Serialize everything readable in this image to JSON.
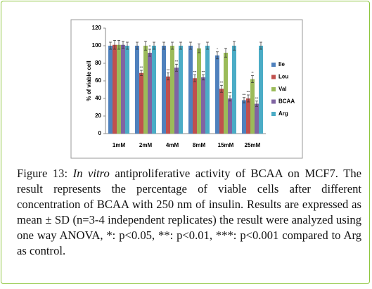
{
  "chart_data": {
    "type": "bar",
    "y_label": "% of viable cell",
    "categories": [
      "1mM",
      "2mM",
      "4mM",
      "8mM",
      "15mM",
      "25mM"
    ],
    "series": [
      {
        "name": "Ile",
        "color": "#4f81bd",
        "values": [
          100,
          100,
          100,
          100,
          89,
          38
        ],
        "errors": [
          4,
          4,
          4,
          4,
          4,
          3
        ],
        "significance": [
          null,
          null,
          null,
          null,
          "*",
          "***"
        ]
      },
      {
        "name": "Leu",
        "color": "#c0504d",
        "values": [
          101,
          69,
          65,
          63,
          51,
          40
        ],
        "errors": [
          5,
          3,
          4,
          4,
          4,
          4
        ],
        "significance": [
          null,
          "***",
          "***",
          "***",
          "***",
          "***"
        ]
      },
      {
        "name": "Val",
        "color": "#9bbb59",
        "values": [
          101,
          100,
          100,
          97,
          92,
          62
        ],
        "errors": [
          5,
          5,
          4,
          5,
          5,
          4
        ],
        "significance": [
          null,
          null,
          null,
          null,
          null,
          "**"
        ]
      },
      {
        "name": "BCAA",
        "color": "#8064a2",
        "values": [
          101,
          92,
          75,
          64,
          40,
          34
        ],
        "errors": [
          4,
          4,
          4,
          3,
          3,
          3
        ],
        "significance": [
          null,
          "**",
          "***",
          "***",
          "***",
          "***"
        ]
      },
      {
        "name": "Arg",
        "color": "#4bacc6",
        "values": [
          100,
          100,
          100,
          100,
          100,
          100
        ],
        "errors": [
          4,
          4,
          4,
          4,
          5,
          4
        ],
        "significance": [
          null,
          null,
          null,
          null,
          null,
          null
        ]
      }
    ],
    "ylim": [
      0,
      120
    ],
    "yticks": [
      0,
      20,
      40,
      60,
      80,
      100,
      120
    ],
    "grid": false,
    "legend": "right"
  },
  "caption": {
    "label": "Figure 13:",
    "italic": "In vitro",
    "text": "antiproliferative activity of BCAA on MCF7. The result represents the percentage of viable cells after different concentration of BCAA with 250 nm of insulin. Results are expressed as mean ± SD (n=3-4 independent replicates) the result were analyzed using one way ANOVA, *: p<0.05, **: p<0.01, ***: p<0.001 compared to Arg as control."
  }
}
